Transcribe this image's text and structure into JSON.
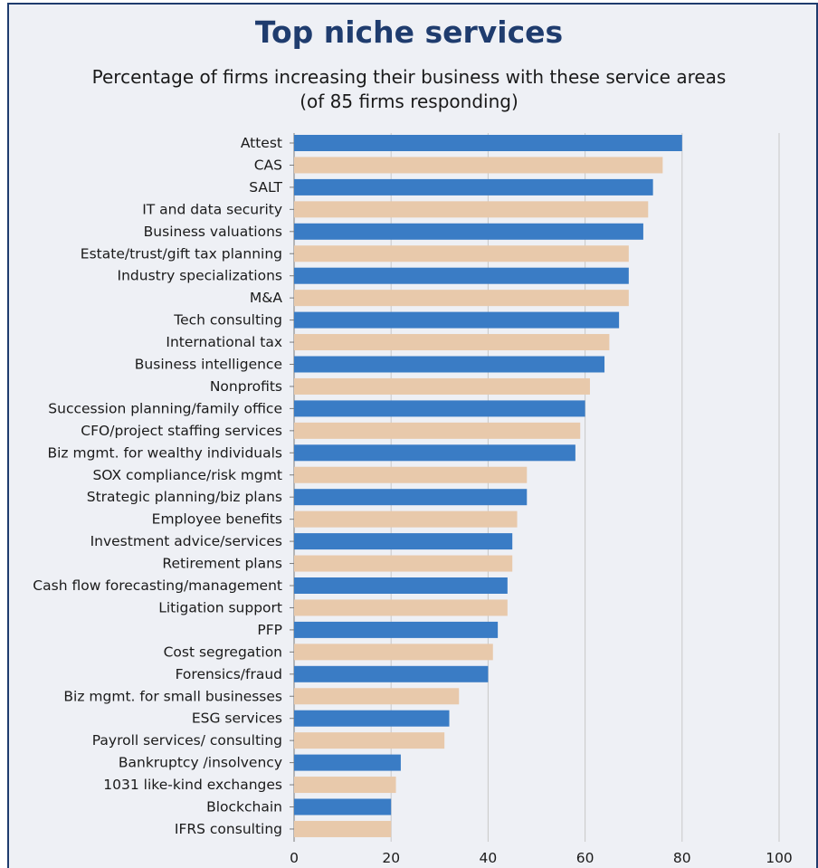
{
  "chart_data": {
    "type": "bar",
    "orientation": "horizontal",
    "title": "Top niche services",
    "subtitle_lines": [
      "Percentage of firms increasing their business with these service areas",
      "(of 85 firms responding)"
    ],
    "categories": [
      "Attest",
      "CAS",
      "SALT",
      "IT and data security",
      "Business valuations",
      "Estate/trust/gift tax planning",
      "Industry specializations",
      "M&A",
      "Tech consulting",
      "International tax",
      "Business intelligence",
      "Nonprofits",
      "Succession planning/family office",
      "CFO/project staffing services",
      "Biz mgmt. for wealthy individuals",
      "SOX compliance/risk mgmt",
      "Strategic planning/biz plans",
      "Employee benefits",
      "Investment advice/services",
      "Retirement plans",
      "Cash flow forecasting/management",
      "Litigation support",
      "PFP",
      "Cost segregation",
      "Forensics/fraud",
      "Biz mgmt. for small businesses",
      "ESG services",
      "Payroll services/ consulting",
      "Bankruptcy /insolvency",
      "1031 like-kind exchanges",
      "Blockchain",
      "IFRS consulting"
    ],
    "values": [
      80,
      76,
      74,
      73,
      72,
      69,
      69,
      69,
      67,
      65,
      64,
      61,
      60,
      59,
      58,
      48,
      48,
      46,
      45,
      45,
      44,
      44,
      42,
      41,
      40,
      34,
      32,
      31,
      22,
      21,
      20,
      20
    ],
    "bar_colors": [
      "#3a7cc5",
      "#e8c9ab",
      "#3a7cc5",
      "#e8c9ab",
      "#3a7cc5",
      "#e8c9ab",
      "#3a7cc5",
      "#e8c9ab",
      "#3a7cc5",
      "#e8c9ab",
      "#3a7cc5",
      "#e8c9ab",
      "#3a7cc5",
      "#e8c9ab",
      "#3a7cc5",
      "#e8c9ab",
      "#3a7cc5",
      "#e8c9ab",
      "#3a7cc5",
      "#e8c9ab",
      "#3a7cc5",
      "#e8c9ab",
      "#3a7cc5",
      "#e8c9ab",
      "#3a7cc5",
      "#e8c9ab",
      "#3a7cc5",
      "#e8c9ab",
      "#3a7cc5",
      "#e8c9ab",
      "#3a7cc5",
      "#e8c9ab"
    ],
    "xlim": [
      0,
      100
    ],
    "xticks": [
      0,
      20,
      40,
      60,
      80,
      100
    ],
    "xlabel": "",
    "ylabel": "",
    "grid": "vertical",
    "colors": {
      "primary_bar": "#3a7cc5",
      "secondary_bar": "#e8c9ab",
      "title": "#1f3c6e",
      "background": "#eef0f5",
      "gridline": "#c8c8c8"
    }
  }
}
